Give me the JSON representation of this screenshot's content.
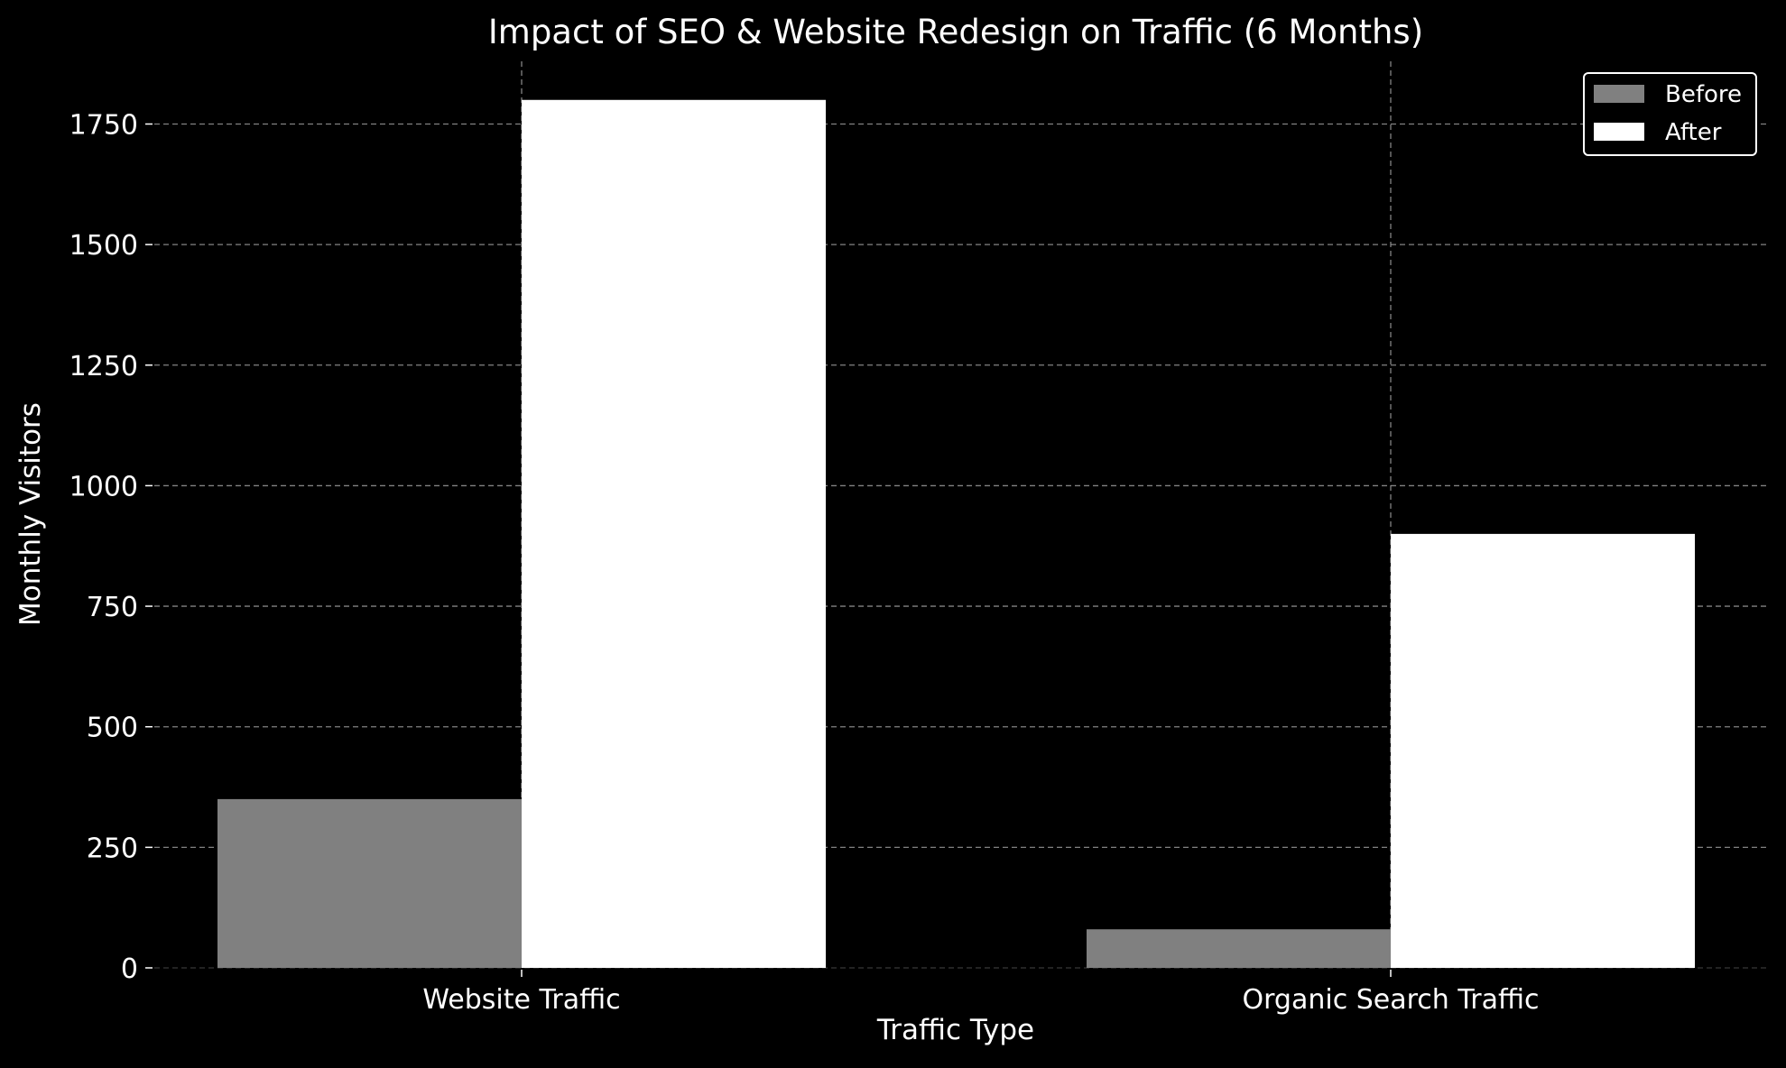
{
  "chart_data": {
    "type": "bar",
    "title": "Impact of SEO & Website Redesign on Traffic (6 Months)",
    "xlabel": "Traffic Type",
    "ylabel": "Monthly Visitors",
    "categories": [
      "Website Traffic",
      "Organic Search Traffic"
    ],
    "series": [
      {
        "name": "Before",
        "values": [
          350,
          80
        ],
        "color": "#808080"
      },
      {
        "name": "After",
        "values": [
          1800,
          900
        ],
        "color": "#ffffff"
      }
    ],
    "ylim": [
      0,
      1880
    ],
    "yticks": [
      0,
      250,
      500,
      750,
      1000,
      1250,
      1500,
      1750
    ],
    "grid": true,
    "legend_position": "top-right",
    "background": "#000000",
    "text_color": "#ffffff",
    "grid_color": "#9a9a9a"
  }
}
